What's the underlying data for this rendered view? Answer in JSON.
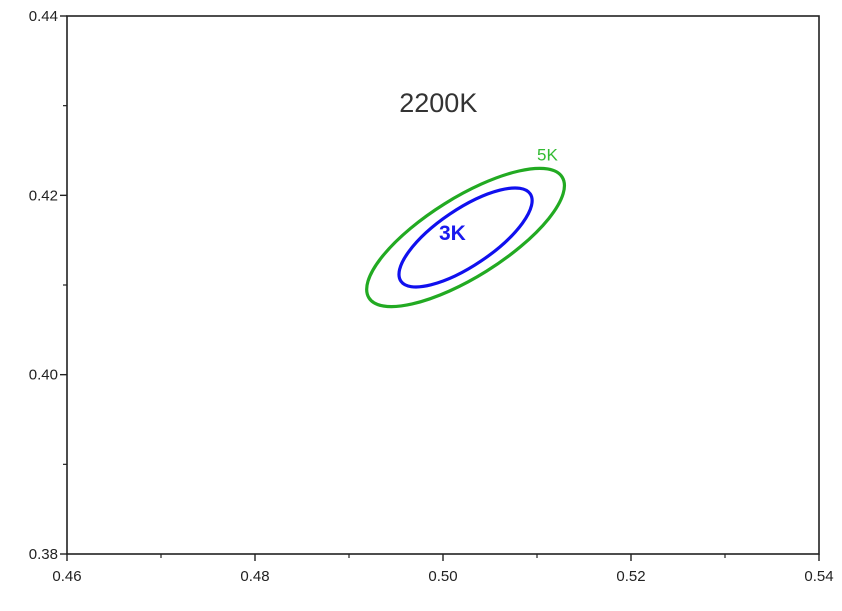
{
  "chart_data": {
    "type": "scatter",
    "title": "2200K",
    "xlabel": "",
    "ylabel": "",
    "xlim": [
      0.46,
      0.54
    ],
    "ylim": [
      0.38,
      0.44
    ],
    "x_ticks": [
      0.46,
      0.48,
      0.5,
      0.52,
      0.54
    ],
    "x_tick_labels": [
      "0.46",
      "0.48",
      "0.50",
      "0.52",
      "0.54"
    ],
    "x_minor_ticks": [
      0.47,
      0.49,
      0.51,
      0.53
    ],
    "y_ticks": [
      0.38,
      0.4,
      0.42,
      0.44
    ],
    "y_tick_labels": [
      "0.38",
      "0.40",
      "0.42",
      "0.44"
    ],
    "y_minor_ticks": [
      0.39,
      0.41,
      0.43
    ],
    "grid": false,
    "series": [
      {
        "name": "5K",
        "type": "ellipse",
        "color": "#22aa22",
        "label_color": "#33bb33",
        "center": [
          0.5024,
          0.4153
        ],
        "rx": 0.01212,
        "ry": 0.00422,
        "angle_deg": -32,
        "label_at": [
          0.51,
          0.4239
        ]
      },
      {
        "name": "3K",
        "type": "ellipse",
        "color": "#1010ee",
        "label_color": "#1a1aee",
        "center": [
          0.5024,
          0.4153
        ],
        "rx": 0.0083,
        "ry": 0.003,
        "angle_deg": -34,
        "label_at": [
          0.501,
          0.415
        ]
      }
    ],
    "annotations": [
      {
        "text": "2200K",
        "at": [
          0.4995,
          0.4293
        ]
      }
    ]
  }
}
